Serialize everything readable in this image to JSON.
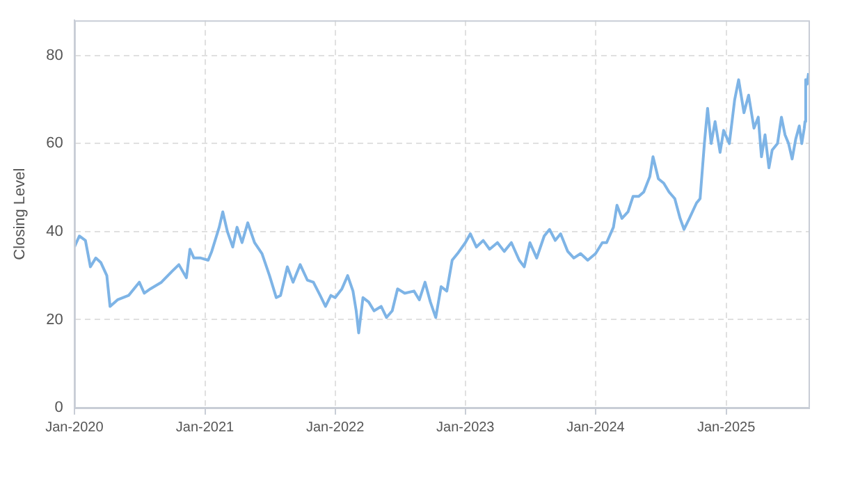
{
  "chart_data": {
    "type": "line",
    "ylabel": "Closing Level",
    "color": "#7eb4e6",
    "grid": true,
    "legend": false,
    "marker": "none",
    "line_style": "solid",
    "xlim": [
      "2020-01-01",
      "2025-08-20"
    ],
    "ylim": [
      0,
      88
    ],
    "yticks": [
      0,
      20,
      40,
      60,
      80
    ],
    "xticks": [
      {
        "value": "2020-01-01",
        "label": "Jan-2020"
      },
      {
        "value": "2021-01-01",
        "label": "Jan-2021"
      },
      {
        "value": "2022-01-01",
        "label": "Jan-2022"
      },
      {
        "value": "2023-01-01",
        "label": "Jan-2023"
      },
      {
        "value": "2024-01-01",
        "label": "Jan-2024"
      },
      {
        "value": "2025-01-01",
        "label": "Jan-2025"
      }
    ],
    "x": [
      "2020-01-01",
      "2020-01-15",
      "2020-02-01",
      "2020-02-15",
      "2020-03-01",
      "2020-03-15",
      "2020-04-01",
      "2020-04-10",
      "2020-05-01",
      "2020-06-01",
      "2020-07-01",
      "2020-07-15",
      "2020-08-01",
      "2020-09-01",
      "2020-10-01",
      "2020-10-20",
      "2020-11-10",
      "2020-11-20",
      "2020-12-01",
      "2020-12-20",
      "2021-01-10",
      "2021-01-20",
      "2021-02-10",
      "2021-02-20",
      "2021-03-05",
      "2021-03-20",
      "2021-04-01",
      "2021-04-15",
      "2021-05-01",
      "2021-05-20",
      "2021-06-10",
      "2021-07-01",
      "2021-07-20",
      "2021-08-01",
      "2021-08-20",
      "2021-09-05",
      "2021-09-25",
      "2021-10-15",
      "2021-11-01",
      "2021-11-20",
      "2021-12-05",
      "2021-12-20",
      "2022-01-01",
      "2022-01-20",
      "2022-02-05",
      "2022-02-20",
      "2022-03-01",
      "2022-03-08",
      "2022-03-20",
      "2022-04-05",
      "2022-04-20",
      "2022-05-10",
      "2022-05-25",
      "2022-06-10",
      "2022-06-25",
      "2022-07-15",
      "2022-08-10",
      "2022-08-25",
      "2022-09-10",
      "2022-09-25",
      "2022-10-10",
      "2022-10-25",
      "2022-11-10",
      "2022-11-25",
      "2022-12-10",
      "2023-01-01",
      "2023-01-15",
      "2023-02-01",
      "2023-02-20",
      "2023-03-10",
      "2023-04-01",
      "2023-04-20",
      "2023-05-10",
      "2023-06-01",
      "2023-06-15",
      "2023-07-01",
      "2023-07-20",
      "2023-08-10",
      "2023-08-25",
      "2023-09-10",
      "2023-09-25",
      "2023-10-15",
      "2023-11-01",
      "2023-11-20",
      "2023-12-10",
      "2024-01-01",
      "2024-01-20",
      "2024-02-01",
      "2024-02-20",
      "2024-03-01",
      "2024-03-15",
      "2024-04-01",
      "2024-04-15",
      "2024-05-01",
      "2024-05-15",
      "2024-06-01",
      "2024-06-10",
      "2024-06-25",
      "2024-07-10",
      "2024-07-25",
      "2024-08-10",
      "2024-08-25",
      "2024-09-05",
      "2024-09-20",
      "2024-10-10",
      "2024-10-20",
      "2024-11-01",
      "2024-11-10",
      "2024-11-20",
      "2024-12-01",
      "2024-12-15",
      "2024-12-25",
      "2025-01-10",
      "2025-01-25",
      "2025-02-05",
      "2025-02-20",
      "2025-03-05",
      "2025-03-20",
      "2025-04-01",
      "2025-04-10",
      "2025-04-20",
      "2025-05-01",
      "2025-05-10",
      "2025-05-25",
      "2025-06-05",
      "2025-06-15",
      "2025-06-25",
      "2025-07-05",
      "2025-07-15",
      "2025-07-25",
      "2025-08-01",
      "2025-08-08",
      "2025-08-10",
      "2025-08-12",
      "2025-08-16",
      "2025-08-20"
    ],
    "values": [
      36.5,
      39,
      38,
      32,
      34,
      33,
      30,
      23,
      24.5,
      25.5,
      28.5,
      26,
      27,
      28.5,
      31,
      32.5,
      29.5,
      36,
      34,
      34,
      33.5,
      35.5,
      41,
      44.5,
      40,
      36.5,
      41,
      37.5,
      42,
      37.5,
      35,
      30,
      25,
      25.5,
      32,
      28.5,
      32.5,
      29,
      28.5,
      25.5,
      23,
      25.5,
      25,
      27,
      30,
      26.5,
      22,
      17,
      25,
      24,
      22,
      23,
      20.5,
      22,
      27,
      26,
      26.5,
      24.5,
      28.5,
      24,
      20.5,
      27.5,
      26.5,
      33.5,
      35,
      37.5,
      39.5,
      36.5,
      38,
      36,
      37.5,
      35.5,
      37.5,
      33.5,
      32,
      37.5,
      34,
      39,
      40.5,
      38,
      39.5,
      35.5,
      34,
      35,
      33.5,
      35,
      37.5,
      37.5,
      41,
      46,
      43,
      44.5,
      48,
      48,
      49,
      52.5,
      57,
      52,
      51,
      49,
      47.5,
      43,
      40.5,
      43,
      46.5,
      47.5,
      60,
      68,
      60,
      65,
      58,
      63,
      60,
      70,
      74.5,
      67,
      71,
      63.5,
      66,
      57,
      62,
      54.5,
      58.5,
      60,
      66,
      62,
      60,
      56.5,
      61,
      64,
      60,
      63.5,
      65,
      74.5,
      73.5,
      76
    ]
  }
}
